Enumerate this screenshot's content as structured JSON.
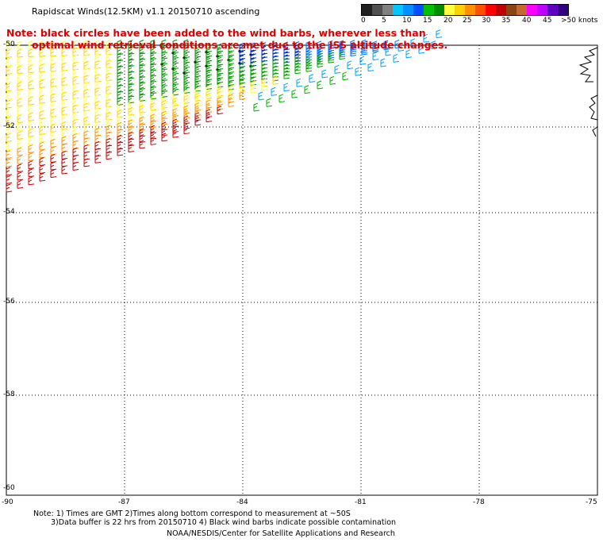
{
  "header": {
    "title": "Rapidscat Winds(12.5KM) v1.1 20150710 ascending",
    "note_line1": "Note: black circles have been added to the wind barbs, wherever less than",
    "note_line2": "optimal wind retrieval conditions are met due to the ISS altitude changes."
  },
  "color_scale": {
    "labels": [
      "0",
      "5",
      "10",
      "15",
      "20",
      "25",
      "30",
      "35",
      "40",
      "45",
      ">50 knots"
    ],
    "colors": [
      "#202020",
      "#505050",
      "#808080",
      "#00c8ff",
      "#0090ff",
      "#0050ff",
      "#00c000",
      "#008c00",
      "#ffff40",
      "#ffd000",
      "#ff9000",
      "#ff5000",
      "#ff0000",
      "#c00000",
      "#8b4513",
      "#c46a30",
      "#ff00ff",
      "#c000ff",
      "#6000c0",
      "#300080"
    ]
  },
  "map": {
    "lon_labels": [
      "-90",
      "-87",
      "-84",
      "-81",
      "-78",
      "-75"
    ],
    "lat_labels": [
      "-50",
      "-52",
      "-54",
      "-56",
      "-58",
      "-60"
    ]
  },
  "footer": {
    "line1": "Note: 1) Times are GMT 2)Times along bottom correspond to measurement at ~50S",
    "line2": "3)Data buffer is 22 hrs from 20150710 4) Black wind barbs indicate possible contamination",
    "line3": "NOAA/NESDIS/Center for Satellite Applications and Research"
  }
}
